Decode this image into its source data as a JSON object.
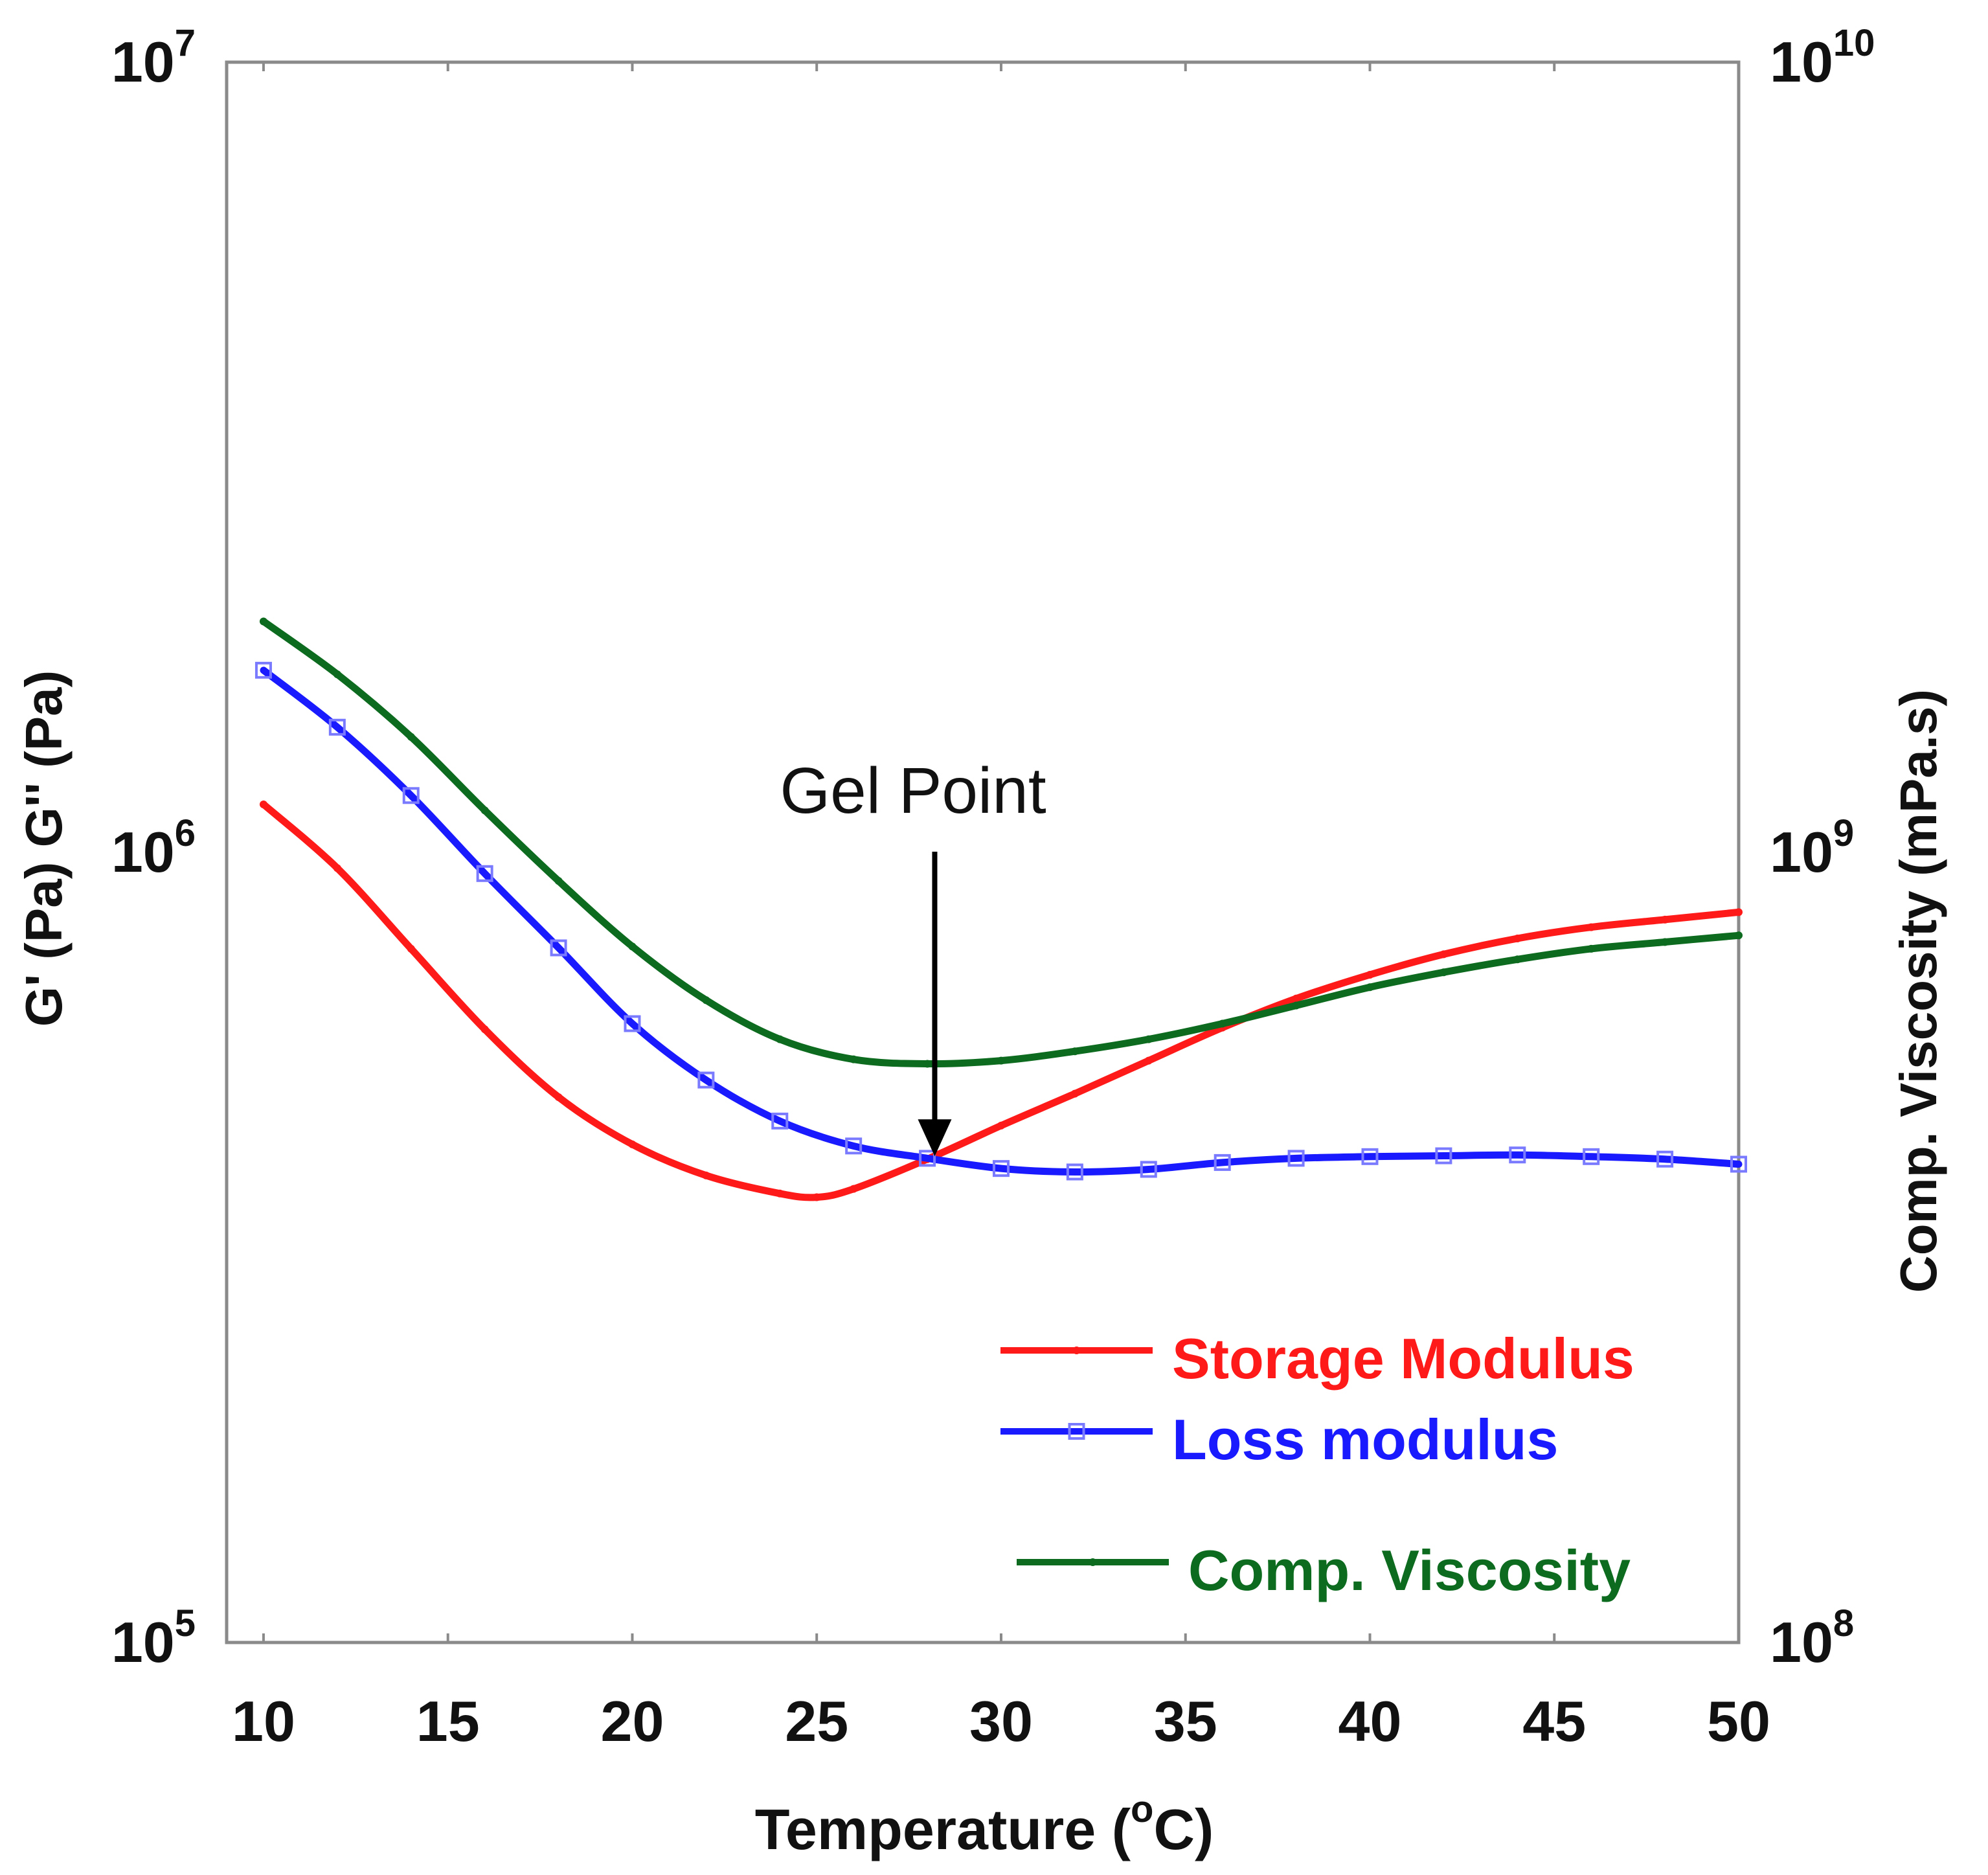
{
  "chart_data": {
    "type": "line",
    "title": "",
    "xlabel": "Temperature (°C)",
    "xlabel_parts": {
      "before": "Temperature (",
      "sup": "o",
      "after": "C)"
    },
    "ylabel_left": "G' (Pa) G'' (Pa)",
    "ylabel_right": "Comp. Viscosity (mPa.s)",
    "xlim": [
      9,
      50
    ],
    "ylim_left": [
      100000,
      10000000
    ],
    "ylim_right": [
      100000000,
      10000000000
    ],
    "y_scale": "log",
    "x_ticks": [
      "10",
      "15",
      "20",
      "25",
      "30",
      "35",
      "40",
      "45",
      "50"
    ],
    "y_left_ticks": [
      {
        "base": "10",
        "exp": "5"
      },
      {
        "base": "10",
        "exp": "6"
      },
      {
        "base": "10",
        "exp": "7"
      }
    ],
    "y_right_ticks": [
      {
        "base": "10",
        "exp": "8"
      },
      {
        "base": "10",
        "exp": "9"
      },
      {
        "base": "10",
        "exp": "10"
      }
    ],
    "annotation": {
      "text": "Gel Point",
      "x": 28.2,
      "y": 414000
    },
    "legend_position": "bottom-right",
    "series": [
      {
        "name": "Storage Modulus",
        "axis": "left",
        "color": "#ff1a1a",
        "marker": "dot",
        "x": [
          10,
          12,
          14,
          16,
          18,
          20,
          22,
          24,
          25,
          26,
          28,
          30,
          32,
          34,
          36,
          38,
          40,
          42,
          44,
          46,
          48,
          50
        ],
        "y": [
          1150000,
          955000,
          755000,
          597000,
          490000,
          427000,
          390000,
          370000,
          366000,
          375000,
          409000,
          451000,
          495000,
          545000,
          600000,
          653000,
          700000,
          743000,
          778000,
          804000,
          822000,
          840000
        ]
      },
      {
        "name": "Loss modulus",
        "axis": "left",
        "color": "#1a1aff",
        "marker": "square",
        "x": [
          10,
          12,
          14,
          16,
          18,
          20,
          22,
          24,
          26,
          28,
          30,
          32,
          34,
          36,
          38,
          40,
          42,
          44,
          46,
          48,
          50
        ],
        "y": [
          1700000,
          1440000,
          1180000,
          940000,
          757000,
          607000,
          515000,
          457000,
          425000,
          410000,
          398000,
          394000,
          397000,
          405000,
          410000,
          412000,
          413000,
          414000,
          412000,
          409000,
          403000
        ]
      },
      {
        "name": "Comp. Viscosity",
        "axis": "right",
        "color": "#0c6b1e",
        "marker": "dot",
        "x": [
          10,
          12,
          14,
          16,
          18,
          20,
          22,
          24,
          26,
          28,
          30,
          32,
          34,
          36,
          38,
          40,
          42,
          44,
          46,
          48,
          50
        ],
        "y": [
          1960000000,
          1680000000,
          1400000000,
          1130000000,
          920000000,
          760000000,
          650000000,
          580000000,
          547000000,
          540000000,
          545000000,
          560000000,
          580000000,
          607000000,
          640000000,
          675000000,
          705000000,
          732000000,
          755000000,
          770000000,
          785000000
        ]
      }
    ]
  }
}
